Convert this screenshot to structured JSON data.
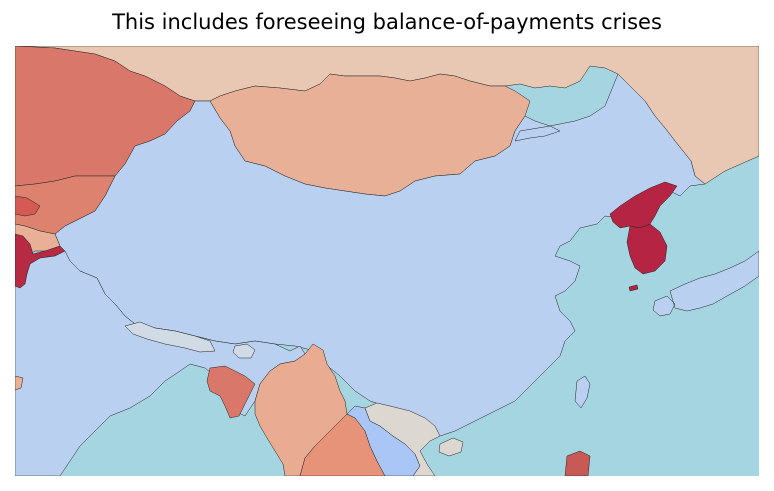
{
  "title": "This includes foreseeing balance-of-payments crises",
  "map": {
    "ocean_color": "#a6d5e2",
    "regions": [
      {
        "name": "russia",
        "color": "#e8c7b3"
      },
      {
        "name": "kazakhstan",
        "color": "#d9786a"
      },
      {
        "name": "mongolia",
        "color": "#e9b098"
      },
      {
        "name": "china",
        "color": "#b9d0f0"
      },
      {
        "name": "kyrgyzstan",
        "color": "#dc826f"
      },
      {
        "name": "tajikistan",
        "color": "#d55a55"
      },
      {
        "name": "afghanistan",
        "color": "#e9b098"
      },
      {
        "name": "pakistan",
        "color": "#b62a44"
      },
      {
        "name": "india",
        "color": "#b9d0f0"
      },
      {
        "name": "nepal",
        "color": "#d0dbe6"
      },
      {
        "name": "bhutan",
        "color": "#d0dbe6"
      },
      {
        "name": "bangladesh",
        "color": "#d9786a"
      },
      {
        "name": "myanmar",
        "color": "#e9ab91"
      },
      {
        "name": "thailand",
        "color": "#e7937a"
      },
      {
        "name": "laos",
        "color": "#a9c6f7"
      },
      {
        "name": "vietnam",
        "color": "#ddd7d2"
      },
      {
        "name": "cambodia",
        "color": "#c85a55"
      },
      {
        "name": "north-korea",
        "color": "#b62444"
      },
      {
        "name": "south-korea",
        "color": "#b62444"
      },
      {
        "name": "japan",
        "color": "#b9d0f0"
      },
      {
        "name": "taiwan",
        "color": "#b9d0f0"
      },
      {
        "name": "hainan",
        "color": "#ddd7d2"
      },
      {
        "name": "iran-edge",
        "color": "#e9b098"
      }
    ]
  }
}
